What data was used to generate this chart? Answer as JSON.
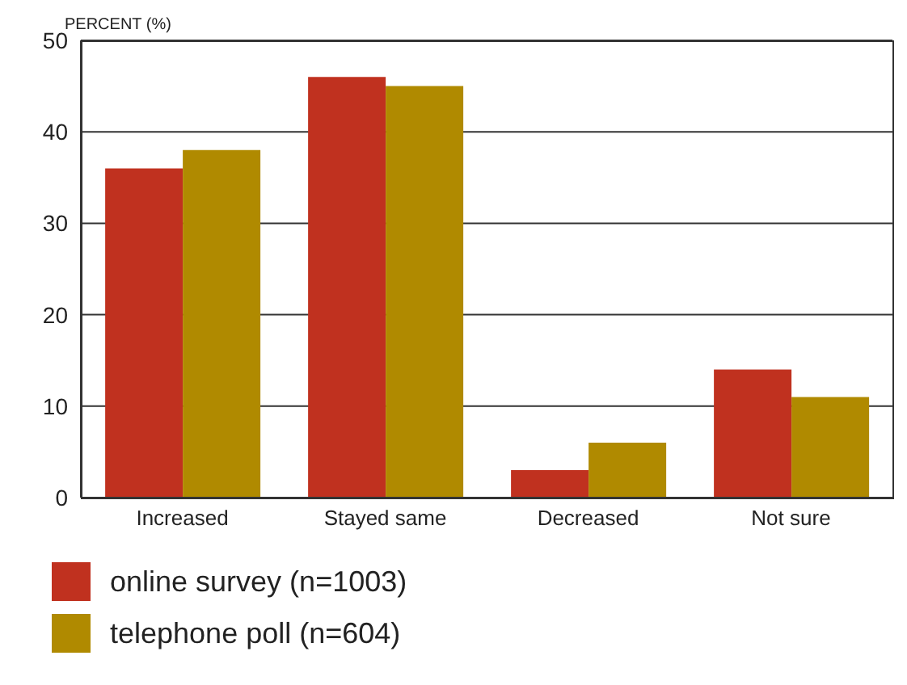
{
  "chart_data": {
    "type": "bar",
    "ylabel": "PERCENT (%)",
    "categories": [
      "Increased",
      "Stayed same",
      "Decreased",
      "Not sure"
    ],
    "series": [
      {
        "name": "online survey (n=1003)",
        "color": "#c0311f",
        "values": [
          36,
          46,
          3,
          14
        ]
      },
      {
        "name": "telephone poll (n=604)",
        "color": "#b08a00",
        "values": [
          38,
          45,
          6,
          11
        ]
      }
    ],
    "ylim": [
      0,
      50
    ],
    "yticks": [
      0,
      10,
      20,
      30,
      40,
      50
    ],
    "grid": "y",
    "legend": "bottom"
  }
}
